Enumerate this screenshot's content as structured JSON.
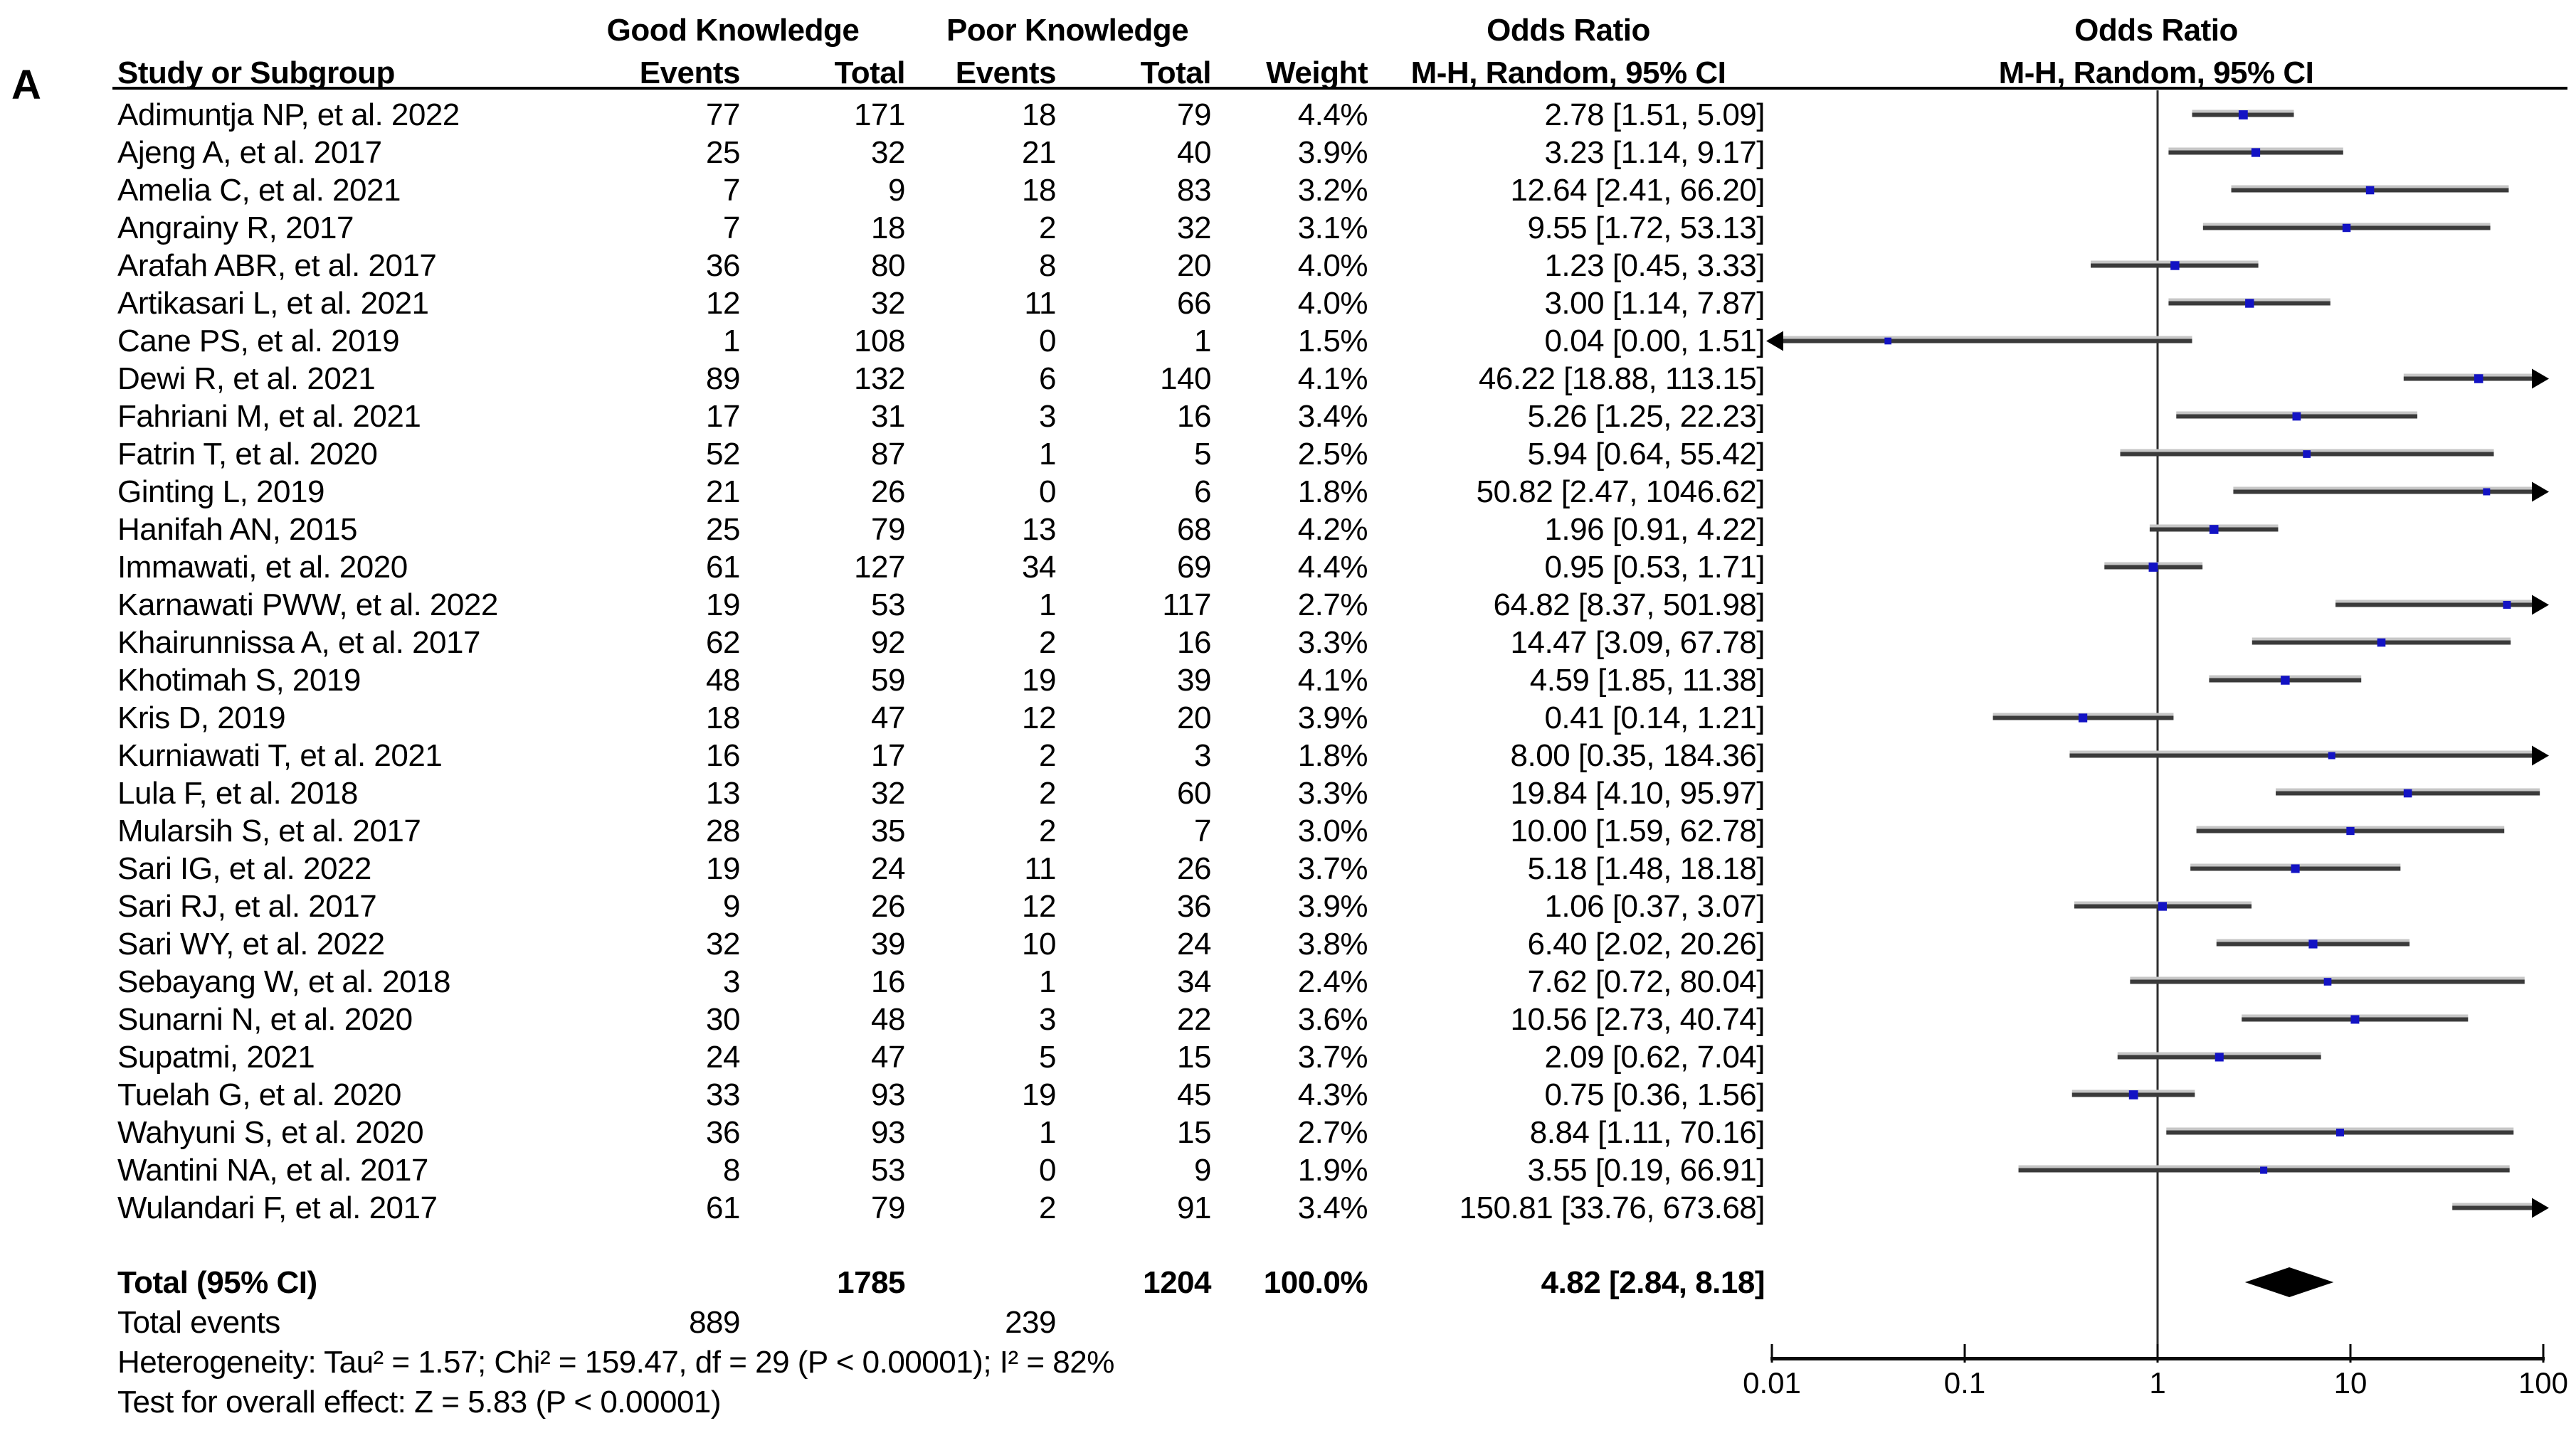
{
  "panel_label": "A",
  "header": {
    "study": "Study or Subgroup",
    "group1": "Good Knowledge",
    "group2": "Poor Knowledge",
    "events": "Events",
    "total": "Total",
    "weight": "Weight",
    "or_line1": "Odds Ratio",
    "or_line2": "M-H, Random, 95% CI"
  },
  "chart_data": {
    "type": "forest",
    "effect_measure": "Odds Ratio",
    "method": "M-H, Random, 95% CI",
    "x_axis": {
      "scale": "log",
      "min": 0.01,
      "max": 100,
      "ticks": [
        "0.01",
        "0.1",
        "1",
        "10",
        "100"
      ],
      "tick_values": [
        0.01,
        0.1,
        1,
        10,
        100
      ]
    },
    "marker_color": "#1313c4",
    "studies": [
      {
        "name": "Adimuntja NP, et al. 2022",
        "gk_events": "77",
        "gk_total": "171",
        "pk_events": "18",
        "pk_total": "79",
        "weight": "4.4%",
        "weight_pct": 4.4,
        "or": 2.78,
        "ci_low": 1.51,
        "ci_high": 5.09,
        "or_ci_text": "2.78 [1.51, 5.09]"
      },
      {
        "name": "Ajeng A, et al. 2017",
        "gk_events": "25",
        "gk_total": "32",
        "pk_events": "21",
        "pk_total": "40",
        "weight": "3.9%",
        "weight_pct": 3.9,
        "or": 3.23,
        "ci_low": 1.14,
        "ci_high": 9.17,
        "or_ci_text": "3.23 [1.14, 9.17]"
      },
      {
        "name": "Amelia C, et al. 2021",
        "gk_events": "7",
        "gk_total": "9",
        "pk_events": "18",
        "pk_total": "83",
        "weight": "3.2%",
        "weight_pct": 3.2,
        "or": 12.64,
        "ci_low": 2.41,
        "ci_high": 66.2,
        "or_ci_text": "12.64 [2.41, 66.20]"
      },
      {
        "name": "Angrainy R, 2017",
        "gk_events": "7",
        "gk_total": "18",
        "pk_events": "2",
        "pk_total": "32",
        "weight": "3.1%",
        "weight_pct": 3.1,
        "or": 9.55,
        "ci_low": 1.72,
        "ci_high": 53.13,
        "or_ci_text": "9.55 [1.72, 53.13]"
      },
      {
        "name": "Arafah ABR, et al. 2017",
        "gk_events": "36",
        "gk_total": "80",
        "pk_events": "8",
        "pk_total": "20",
        "weight": "4.0%",
        "weight_pct": 4.0,
        "or": 1.23,
        "ci_low": 0.45,
        "ci_high": 3.33,
        "or_ci_text": "1.23 [0.45, 3.33]"
      },
      {
        "name": "Artikasari L, et al. 2021",
        "gk_events": "12",
        "gk_total": "32",
        "pk_events": "11",
        "pk_total": "66",
        "weight": "4.0%",
        "weight_pct": 4.0,
        "or": 3.0,
        "ci_low": 1.14,
        "ci_high": 7.87,
        "or_ci_text": "3.00 [1.14, 7.87]"
      },
      {
        "name": "Cane PS, et al. 2019",
        "gk_events": "1",
        "gk_total": "108",
        "pk_events": "0",
        "pk_total": "1",
        "weight": "1.5%",
        "weight_pct": 1.5,
        "or": 0.04,
        "ci_low": 0.0,
        "ci_high": 1.51,
        "or_ci_text": "0.04 [0.00, 1.51]"
      },
      {
        "name": "Dewi R, et al. 2021",
        "gk_events": "89",
        "gk_total": "132",
        "pk_events": "6",
        "pk_total": "140",
        "weight": "4.1%",
        "weight_pct": 4.1,
        "or": 46.22,
        "ci_low": 18.88,
        "ci_high": 113.15,
        "or_ci_text": "46.22 [18.88, 113.15]"
      },
      {
        "name": "Fahriani M, et al. 2021",
        "gk_events": "17",
        "gk_total": "31",
        "pk_events": "3",
        "pk_total": "16",
        "weight": "3.4%",
        "weight_pct": 3.4,
        "or": 5.26,
        "ci_low": 1.25,
        "ci_high": 22.23,
        "or_ci_text": "5.26 [1.25, 22.23]"
      },
      {
        "name": "Fatrin T, et al. 2020",
        "gk_events": "52",
        "gk_total": "87",
        "pk_events": "1",
        "pk_total": "5",
        "weight": "2.5%",
        "weight_pct": 2.5,
        "or": 5.94,
        "ci_low": 0.64,
        "ci_high": 55.42,
        "or_ci_text": "5.94 [0.64, 55.42]"
      },
      {
        "name": "Ginting L, 2019",
        "gk_events": "21",
        "gk_total": "26",
        "pk_events": "0",
        "pk_total": "6",
        "weight": "1.8%",
        "weight_pct": 1.8,
        "or": 50.82,
        "ci_low": 2.47,
        "ci_high": 1046.62,
        "or_ci_text": "50.82 [2.47, 1046.62]"
      },
      {
        "name": "Hanifah AN, 2015",
        "gk_events": "25",
        "gk_total": "79",
        "pk_events": "13",
        "pk_total": "68",
        "weight": "4.2%",
        "weight_pct": 4.2,
        "or": 1.96,
        "ci_low": 0.91,
        "ci_high": 4.22,
        "or_ci_text": "1.96 [0.91, 4.22]"
      },
      {
        "name": "Immawati, et al. 2020",
        "gk_events": "61",
        "gk_total": "127",
        "pk_events": "34",
        "pk_total": "69",
        "weight": "4.4%",
        "weight_pct": 4.4,
        "or": 0.95,
        "ci_low": 0.53,
        "ci_high": 1.71,
        "or_ci_text": "0.95 [0.53, 1.71]"
      },
      {
        "name": "Karnawati PWW, et al. 2022",
        "gk_events": "19",
        "gk_total": "53",
        "pk_events": "1",
        "pk_total": "117",
        "weight": "2.7%",
        "weight_pct": 2.7,
        "or": 64.82,
        "ci_low": 8.37,
        "ci_high": 501.98,
        "or_ci_text": "64.82 [8.37, 501.98]"
      },
      {
        "name": "Khairunnissa A, et al. 2017",
        "gk_events": "62",
        "gk_total": "92",
        "pk_events": "2",
        "pk_total": "16",
        "weight": "3.3%",
        "weight_pct": 3.3,
        "or": 14.47,
        "ci_low": 3.09,
        "ci_high": 67.78,
        "or_ci_text": "14.47 [3.09, 67.78]"
      },
      {
        "name": "Khotimah S, 2019",
        "gk_events": "48",
        "gk_total": "59",
        "pk_events": "19",
        "pk_total": "39",
        "weight": "4.1%",
        "weight_pct": 4.1,
        "or": 4.59,
        "ci_low": 1.85,
        "ci_high": 11.38,
        "or_ci_text": "4.59 [1.85, 11.38]"
      },
      {
        "name": "Kris D, 2019",
        "gk_events": "18",
        "gk_total": "47",
        "pk_events": "12",
        "pk_total": "20",
        "weight": "3.9%",
        "weight_pct": 3.9,
        "or": 0.41,
        "ci_low": 0.14,
        "ci_high": 1.21,
        "or_ci_text": "0.41 [0.14, 1.21]"
      },
      {
        "name": "Kurniawati T, et al. 2021",
        "gk_events": "16",
        "gk_total": "17",
        "pk_events": "2",
        "pk_total": "3",
        "weight": "1.8%",
        "weight_pct": 1.8,
        "or": 8.0,
        "ci_low": 0.35,
        "ci_high": 184.36,
        "or_ci_text": "8.00 [0.35, 184.36]"
      },
      {
        "name": "Lula F, et al. 2018",
        "gk_events": "13",
        "gk_total": "32",
        "pk_events": "2",
        "pk_total": "60",
        "weight": "3.3%",
        "weight_pct": 3.3,
        "or": 19.84,
        "ci_low": 4.1,
        "ci_high": 95.97,
        "or_ci_text": "19.84 [4.10, 95.97]"
      },
      {
        "name": "Mularsih S, et al. 2017",
        "gk_events": "28",
        "gk_total": "35",
        "pk_events": "2",
        "pk_total": "7",
        "weight": "3.0%",
        "weight_pct": 3.0,
        "or": 10.0,
        "ci_low": 1.59,
        "ci_high": 62.78,
        "or_ci_text": "10.00 [1.59, 62.78]"
      },
      {
        "name": "Sari IG, et al. 2022",
        "gk_events": "19",
        "gk_total": "24",
        "pk_events": "11",
        "pk_total": "26",
        "weight": "3.7%",
        "weight_pct": 3.7,
        "or": 5.18,
        "ci_low": 1.48,
        "ci_high": 18.18,
        "or_ci_text": "5.18 [1.48, 18.18]"
      },
      {
        "name": "Sari RJ, et al. 2017",
        "gk_events": "9",
        "gk_total": "26",
        "pk_events": "12",
        "pk_total": "36",
        "weight": "3.9%",
        "weight_pct": 3.9,
        "or": 1.06,
        "ci_low": 0.37,
        "ci_high": 3.07,
        "or_ci_text": "1.06 [0.37, 3.07]"
      },
      {
        "name": "Sari WY, et al. 2022",
        "gk_events": "32",
        "gk_total": "39",
        "pk_events": "10",
        "pk_total": "24",
        "weight": "3.8%",
        "weight_pct": 3.8,
        "or": 6.4,
        "ci_low": 2.02,
        "ci_high": 20.26,
        "or_ci_text": "6.40 [2.02, 20.26]"
      },
      {
        "name": "Sebayang W, et al. 2018",
        "gk_events": "3",
        "gk_total": "16",
        "pk_events": "1",
        "pk_total": "34",
        "weight": "2.4%",
        "weight_pct": 2.4,
        "or": 7.62,
        "ci_low": 0.72,
        "ci_high": 80.04,
        "or_ci_text": "7.62 [0.72, 80.04]"
      },
      {
        "name": "Sunarni N, et al. 2020",
        "gk_events": "30",
        "gk_total": "48",
        "pk_events": "3",
        "pk_total": "22",
        "weight": "3.6%",
        "weight_pct": 3.6,
        "or": 10.56,
        "ci_low": 2.73,
        "ci_high": 40.74,
        "or_ci_text": "10.56 [2.73, 40.74]"
      },
      {
        "name": "Supatmi, 2021",
        "gk_events": "24",
        "gk_total": "47",
        "pk_events": "5",
        "pk_total": "15",
        "weight": "3.7%",
        "weight_pct": 3.7,
        "or": 2.09,
        "ci_low": 0.62,
        "ci_high": 7.04,
        "or_ci_text": "2.09 [0.62, 7.04]"
      },
      {
        "name": "Tuelah G, et al. 2020",
        "gk_events": "33",
        "gk_total": "93",
        "pk_events": "19",
        "pk_total": "45",
        "weight": "4.3%",
        "weight_pct": 4.3,
        "or": 0.75,
        "ci_low": 0.36,
        "ci_high": 1.56,
        "or_ci_text": "0.75 [0.36, 1.56]"
      },
      {
        "name": "Wahyuni S, et al. 2020",
        "gk_events": "36",
        "gk_total": "93",
        "pk_events": "1",
        "pk_total": "15",
        "weight": "2.7%",
        "weight_pct": 2.7,
        "or": 8.84,
        "ci_low": 1.11,
        "ci_high": 70.16,
        "or_ci_text": "8.84 [1.11, 70.16]"
      },
      {
        "name": "Wantini NA, et al. 2017",
        "gk_events": "8",
        "gk_total": "53",
        "pk_events": "0",
        "pk_total": "9",
        "weight": "1.9%",
        "weight_pct": 1.9,
        "or": 3.55,
        "ci_low": 0.19,
        "ci_high": 66.91,
        "or_ci_text": "3.55 [0.19, 66.91]"
      },
      {
        "name": "Wulandari F, et al. 2017",
        "gk_events": "61",
        "gk_total": "79",
        "pk_events": "2",
        "pk_total": "91",
        "weight": "3.4%",
        "weight_pct": 3.4,
        "or": 150.81,
        "ci_low": 33.76,
        "ci_high": 673.68,
        "or_ci_text": "150.81 [33.76, 673.68]"
      }
    ],
    "total": {
      "label": "Total (95% CI)",
      "gk_total": "1785",
      "pk_total": "1204",
      "weight": "100.0%",
      "or": 4.82,
      "ci_low": 2.84,
      "ci_high": 8.18,
      "or_ci_text": "4.82 [2.84, 8.18]"
    },
    "total_events": {
      "label": "Total events",
      "gk": "889",
      "pk": "239"
    },
    "heterogeneity_text": "Heterogeneity: Tau² = 1.57; Chi² = 159.47, df = 29 (P < 0.00001); I² = 82%",
    "overall_effect_text": "Test for overall effect: Z = 5.83 (P < 0.00001)"
  }
}
